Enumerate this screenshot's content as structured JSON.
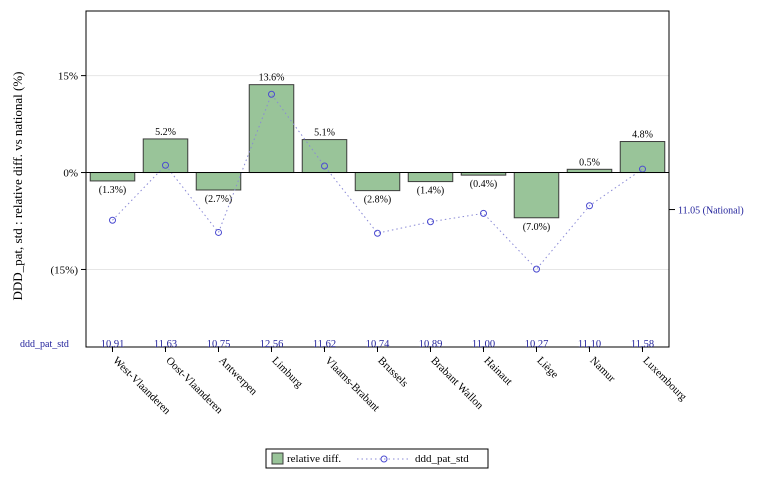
{
  "chart_data": {
    "type": "bar",
    "categories": [
      "West-Vlaanderen",
      "Oost-Vlaanderen",
      "Antwerpen",
      "Limburg",
      "Vlaams-Brabant",
      "Brussels",
      "Brabant Wallon",
      "Hainaut",
      "Liège",
      "Namur",
      "Luxembourg"
    ],
    "series": [
      {
        "name": "relative diff.",
        "type": "bar",
        "values": [
          -1.3,
          5.2,
          -2.7,
          13.6,
          5.1,
          -2.8,
          -1.4,
          -0.4,
          -7.0,
          0.5,
          4.8
        ],
        "labels": [
          "(1.3%)",
          "5.2%",
          "(2.7%)",
          "13.6%",
          "5.1%",
          "(2.8%)",
          "(1.4%)",
          "(0.4%)",
          "(7.0%)",
          "0.5%",
          "4.8%"
        ]
      },
      {
        "name": "ddd_pat_std",
        "type": "line",
        "values": [
          10.91,
          11.63,
          10.75,
          12.56,
          11.62,
          10.74,
          10.89,
          11.0,
          10.27,
          11.1,
          11.58
        ],
        "labels": [
          "10,91",
          "11,63",
          "10,75",
          "12,56",
          "11,62",
          "10,74",
          "10,89",
          "11,00",
          "10,27",
          "11,10",
          "11,58"
        ]
      }
    ],
    "ylabel": "DDD_pat, std : relative diff. vs national (%)",
    "yticks": [
      {
        "value": 15,
        "label": "15%"
      },
      {
        "value": 0,
        "label": "0%"
      },
      {
        "value": -15,
        "label": "(15%)"
      }
    ],
    "ylim": [
      -27,
      25
    ],
    "ddd_ylim": [
      9.25,
      13.65
    ],
    "national": {
      "value": 11.05,
      "label": "11.05 (National)"
    },
    "row_label": "ddd_pat_std",
    "legend_position": "bottom-center",
    "colors": {
      "bar_fill": "#99c499",
      "bar_stroke": "#3c3c3c",
      "marker": "#4b4bd0",
      "line": "#8a8ad6",
      "blue_text": "#1f1f9a",
      "grid": "#e6e6e6"
    }
  }
}
